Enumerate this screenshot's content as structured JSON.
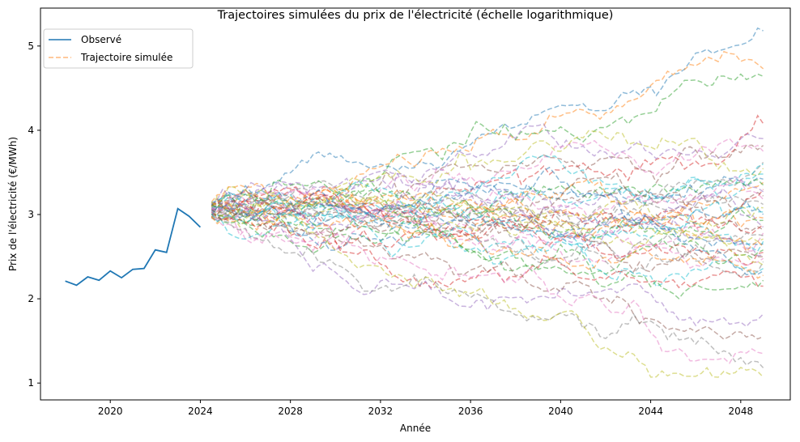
{
  "chart_data": {
    "type": "line",
    "title": "Trajectoires simulées du prix de l'électricité (échelle logarithmique)",
    "xlabel": "Année",
    "ylabel": "Prix de l'électricité (€/MWh)",
    "xlim": [
      2016.9,
      2050.2
    ],
    "ylim": [
      0.8,
      5.45
    ],
    "xticks": [
      2020,
      2024,
      2028,
      2032,
      2036,
      2040,
      2044,
      2048
    ],
    "yticks": [
      1,
      2,
      3,
      4,
      5
    ],
    "grid": false,
    "legend_position": "top-left",
    "legend": [
      {
        "label": "Observé",
        "style": "solid",
        "color": "#1f77b4"
      },
      {
        "label": "Trajectoire simulée",
        "style": "dashed",
        "color": "#ff7f0e"
      }
    ],
    "observed": {
      "name": "Observé",
      "color": "#1f77b4",
      "x": [
        2018.0,
        2018.5,
        2019.0,
        2019.5,
        2020.0,
        2020.5,
        2021.0,
        2021.5,
        2022.0,
        2022.5,
        2023.0,
        2023.5,
        2024.0
      ],
      "y": [
        2.21,
        2.16,
        2.26,
        2.22,
        2.33,
        2.25,
        2.35,
        2.36,
        2.58,
        2.55,
        3.07,
        2.98,
        2.85
      ]
    },
    "simulated": {
      "start_x": 2024.5,
      "step": 0.25,
      "end_x": 2049.0,
      "start_y_range": [
        2.95,
        3.15
      ],
      "num_paths": 50,
      "opacity": 0.5,
      "colors": [
        "#1f77b4",
        "#ff7f0e",
        "#2ca02c",
        "#d62728",
        "#9467bd",
        "#8c564b",
        "#e377c2",
        "#7f7f7f",
        "#bcbd22",
        "#17becf"
      ],
      "endpoints_2049": [
        5.18,
        4.73,
        4.64,
        4.08,
        3.9,
        3.82,
        3.75,
        3.62,
        3.55,
        3.48,
        3.42,
        3.38,
        3.35,
        3.3,
        3.27,
        3.22,
        3.18,
        3.12,
        3.08,
        3.03,
        3.0,
        2.96,
        2.93,
        2.88,
        2.85,
        2.82,
        2.78,
        2.75,
        2.71,
        2.68,
        2.65,
        2.62,
        2.58,
        2.55,
        2.52,
        2.5,
        2.48,
        2.44,
        2.4,
        2.36,
        2.33,
        2.28,
        2.22,
        2.15,
        1.82,
        1.55,
        1.35,
        1.18,
        1.07,
        3.6
      ]
    }
  }
}
